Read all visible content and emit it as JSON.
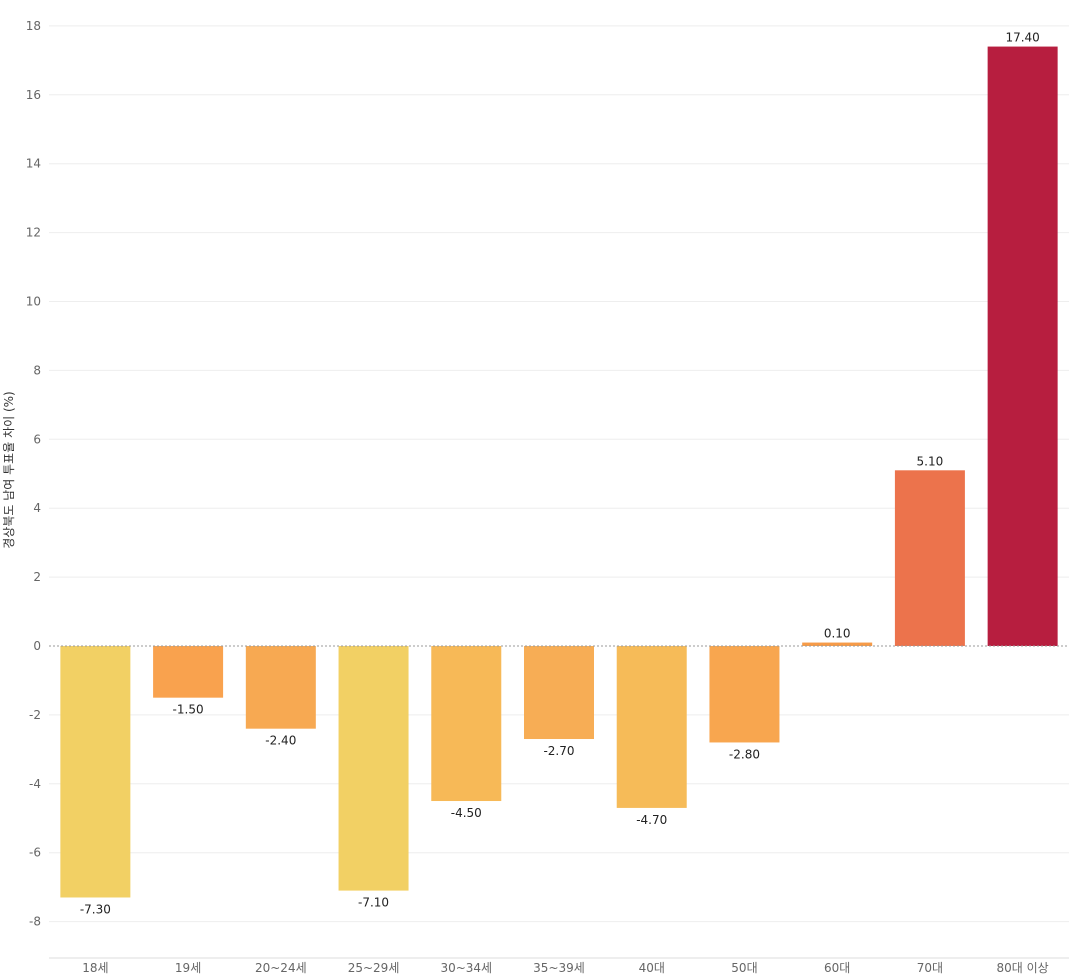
{
  "chart_data": {
    "type": "bar",
    "title": "",
    "xlabel": "",
    "ylabel": "경상북도 남여 투표율 차이 (%)",
    "categories": [
      "18세",
      "19세",
      "20~24세",
      "25~29세",
      "30~34세",
      "35~39세",
      "40대",
      "50대",
      "60대",
      "70대",
      "80대 이상"
    ],
    "values": [
      -7.3,
      -1.5,
      -2.4,
      -7.1,
      -4.5,
      -2.7,
      -4.7,
      -2.8,
      0.1,
      5.1,
      17.4
    ],
    "value_labels": [
      "-7.30",
      "-1.50",
      "-2.40",
      "-7.10",
      "-4.50",
      "-2.70",
      "-4.70",
      "-2.80",
      "0.10",
      "5.10",
      "17.40"
    ],
    "colors": [
      "#f2d064",
      "#f9a24e",
      "#f7a952",
      "#f2d064",
      "#f7b957",
      "#f7ad55",
      "#f6bb58",
      "#f8a64f",
      "#f69b48",
      "#ec734c",
      "#b71e3f"
    ],
    "yticks": [
      18,
      16,
      14,
      12,
      10,
      8,
      6,
      4,
      2,
      0,
      -2,
      -4,
      -6,
      -8
    ],
    "ylim": [
      -9,
      18.6
    ],
    "grid": true,
    "legend": "none"
  }
}
